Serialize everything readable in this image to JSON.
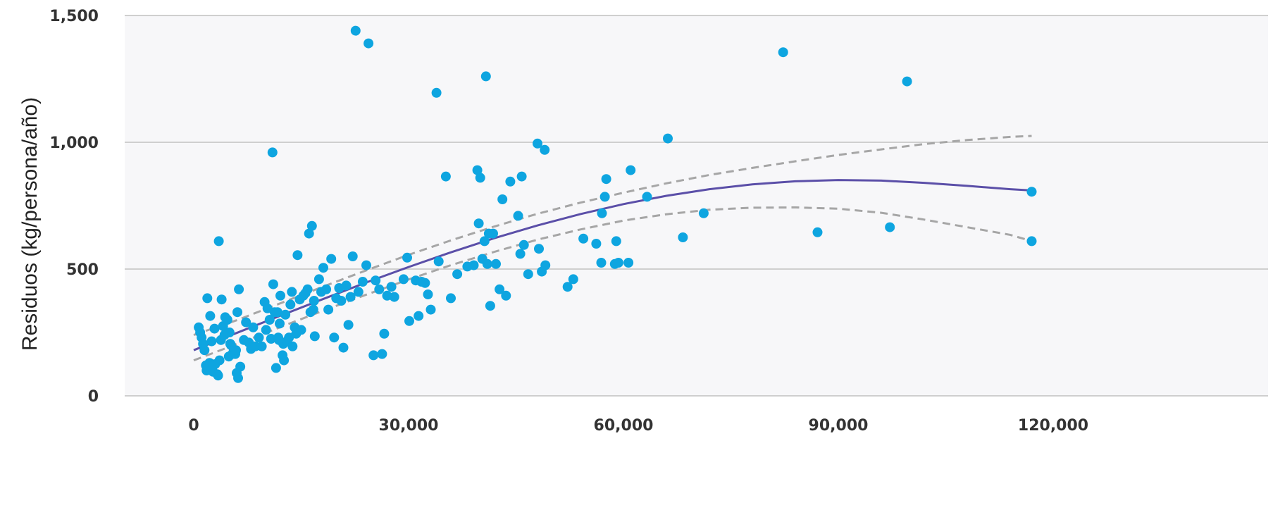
{
  "chart_data": {
    "type": "scatter",
    "title": "",
    "xlabel": "",
    "ylabel": "Residuos (kg/persona/año)",
    "xlim": [
      0,
      120000
    ],
    "ylim": [
      0,
      1500
    ],
    "x_ticks": [
      "0",
      "30,000",
      "60,000",
      "90,000",
      "120,000"
    ],
    "y_ticks": [
      "0",
      "500",
      "1,000",
      "1,500"
    ],
    "grid": "horizontal",
    "legend": "none",
    "colors": {
      "points": "#0ea5e0",
      "fit": "#5b4fa8",
      "ci": "#a6a6a6",
      "plot_background": "#f7f7f9",
      "grid": "#cfcfcf"
    },
    "series": [
      {
        "type": "scatter",
        "points": [
          [
            700,
            270
          ],
          [
            900,
            250
          ],
          [
            1100,
            230
          ],
          [
            1300,
            205
          ],
          [
            1500,
            180
          ],
          [
            1700,
            120
          ],
          [
            1800,
            100
          ],
          [
            1900,
            385
          ],
          [
            2200,
            130
          ],
          [
            2300,
            315
          ],
          [
            2500,
            215
          ],
          [
            2700,
            95
          ],
          [
            2900,
            265
          ],
          [
            3000,
            125
          ],
          [
            3300,
            85
          ],
          [
            3400,
            80
          ],
          [
            3500,
            610
          ],
          [
            3600,
            140
          ],
          [
            3800,
            220
          ],
          [
            3900,
            380
          ],
          [
            4100,
            275
          ],
          [
            4300,
            240
          ],
          [
            4400,
            310
          ],
          [
            4700,
            300
          ],
          [
            4900,
            155
          ],
          [
            5000,
            250
          ],
          [
            5100,
            205
          ],
          [
            5200,
            200
          ],
          [
            5400,
            165
          ],
          [
            5600,
            180
          ],
          [
            5800,
            165
          ],
          [
            5900,
            180
          ],
          [
            6000,
            90
          ],
          [
            6100,
            330
          ],
          [
            6200,
            70
          ],
          [
            6300,
            420
          ],
          [
            6500,
            115
          ],
          [
            7000,
            220
          ],
          [
            7300,
            290
          ],
          [
            7700,
            210
          ],
          [
            8000,
            185
          ],
          [
            8300,
            270
          ],
          [
            8600,
            195
          ],
          [
            9100,
            230
          ],
          [
            9500,
            195
          ],
          [
            9900,
            370
          ],
          [
            10100,
            260
          ],
          [
            10300,
            345
          ],
          [
            10600,
            300
          ],
          [
            10800,
            225
          ],
          [
            11000,
            960
          ],
          [
            11100,
            440
          ],
          [
            11300,
            330
          ],
          [
            11500,
            110
          ],
          [
            11700,
            330
          ],
          [
            11800,
            230
          ],
          [
            11900,
            220
          ],
          [
            12000,
            285
          ],
          [
            12100,
            395
          ],
          [
            12400,
            160
          ],
          [
            12500,
            205
          ],
          [
            12600,
            140
          ],
          [
            12800,
            320
          ],
          [
            13000,
            215
          ],
          [
            13300,
            230
          ],
          [
            13500,
            360
          ],
          [
            13700,
            410
          ],
          [
            13800,
            195
          ],
          [
            14100,
            270
          ],
          [
            14300,
            245
          ],
          [
            14500,
            555
          ],
          [
            14800,
            380
          ],
          [
            15000,
            260
          ],
          [
            15300,
            395
          ],
          [
            15600,
            405
          ],
          [
            15900,
            420
          ],
          [
            16100,
            640
          ],
          [
            16300,
            330
          ],
          [
            16500,
            670
          ],
          [
            16700,
            340
          ],
          [
            16800,
            375
          ],
          [
            16900,
            235
          ],
          [
            17500,
            460
          ],
          [
            17800,
            410
          ],
          [
            18100,
            505
          ],
          [
            18500,
            420
          ],
          [
            18800,
            340
          ],
          [
            19200,
            540
          ],
          [
            19600,
            230
          ],
          [
            19900,
            385
          ],
          [
            20300,
            425
          ],
          [
            20600,
            375
          ],
          [
            20900,
            190
          ],
          [
            21300,
            435
          ],
          [
            21600,
            280
          ],
          [
            21900,
            390
          ],
          [
            22200,
            550
          ],
          [
            22600,
            1440
          ],
          [
            23000,
            410
          ],
          [
            23600,
            450
          ],
          [
            24100,
            515
          ],
          [
            24400,
            1390
          ],
          [
            25100,
            160
          ],
          [
            25400,
            455
          ],
          [
            25900,
            420
          ],
          [
            26300,
            165
          ],
          [
            26600,
            245
          ],
          [
            27000,
            395
          ],
          [
            27600,
            430
          ],
          [
            28000,
            390
          ],
          [
            29300,
            460
          ],
          [
            29800,
            545
          ],
          [
            30100,
            295
          ],
          [
            31000,
            455
          ],
          [
            31400,
            315
          ],
          [
            31800,
            450
          ],
          [
            32300,
            445
          ],
          [
            32700,
            400
          ],
          [
            33100,
            340
          ],
          [
            33900,
            1195
          ],
          [
            34200,
            530
          ],
          [
            35200,
            865
          ],
          [
            35900,
            385
          ],
          [
            36800,
            480
          ],
          [
            38200,
            510
          ],
          [
            39100,
            515
          ],
          [
            39600,
            890
          ],
          [
            39800,
            680
          ],
          [
            40000,
            860
          ],
          [
            40300,
            540
          ],
          [
            40600,
            610
          ],
          [
            40800,
            1260
          ],
          [
            41000,
            520
          ],
          [
            41200,
            640
          ],
          [
            41400,
            355
          ],
          [
            41800,
            640
          ],
          [
            42200,
            520
          ],
          [
            42700,
            420
          ],
          [
            43100,
            775
          ],
          [
            43600,
            395
          ],
          [
            44200,
            845
          ],
          [
            45300,
            710
          ],
          [
            45600,
            560
          ],
          [
            45800,
            865
          ],
          [
            46100,
            595
          ],
          [
            46700,
            480
          ],
          [
            48000,
            995
          ],
          [
            48200,
            580
          ],
          [
            48600,
            490
          ],
          [
            49000,
            970
          ],
          [
            49100,
            515
          ],
          [
            52200,
            430
          ],
          [
            53000,
            460
          ],
          [
            54400,
            620
          ],
          [
            56200,
            600
          ],
          [
            56900,
            525
          ],
          [
            57000,
            720
          ],
          [
            57400,
            785
          ],
          [
            57600,
            855
          ],
          [
            58800,
            520
          ],
          [
            59000,
            610
          ],
          [
            59300,
            525
          ],
          [
            60700,
            525
          ],
          [
            61000,
            890
          ],
          [
            63300,
            785
          ],
          [
            66200,
            1015
          ],
          [
            68300,
            625
          ],
          [
            71200,
            720
          ],
          [
            82300,
            1355
          ],
          [
            87100,
            645
          ],
          [
            97200,
            665
          ],
          [
            99600,
            1240
          ],
          [
            117000,
            805
          ],
          [
            117000,
            610
          ]
        ]
      },
      {
        "type": "line",
        "style": "solid",
        "x": [
          0,
          6000,
          12000,
          18000,
          24000,
          30000,
          36000,
          42000,
          48000,
          54000,
          60000,
          66000,
          72000,
          78000,
          84000,
          90000,
          96000,
          102000,
          108000,
          114000,
          117000
        ],
        "y": [
          180,
          248,
          315,
          381,
          446,
          508,
          567,
          622,
          672,
          717,
          756,
          789,
          815,
          834,
          846,
          851,
          849,
          840,
          828,
          815,
          810
        ]
      },
      {
        "type": "line",
        "style": "dashed",
        "x": [
          0,
          6000,
          12000,
          18000,
          24000,
          30000,
          36000,
          42000,
          48000,
          54000,
          60000,
          66000,
          72000,
          78000,
          84000,
          90000,
          96000,
          102000,
          108000,
          114000,
          117000
        ],
        "y": [
          240,
          298,
          364,
          430,
          494,
          556,
          614,
          668,
          718,
          762,
          801,
          838,
          871,
          899,
          925,
          950,
          972,
          993,
          1009,
          1021,
          1025
        ]
      },
      {
        "type": "line",
        "style": "dashed",
        "x": [
          0,
          6000,
          12000,
          18000,
          24000,
          30000,
          36000,
          42000,
          48000,
          54000,
          60000,
          66000,
          72000,
          78000,
          84000,
          90000,
          96000,
          102000,
          108000,
          114000,
          117000
        ],
        "y": [
          140,
          204,
          270,
          335,
          398,
          459,
          516,
          568,
          616,
          656,
          691,
          716,
          734,
          742,
          743,
          738,
          722,
          695,
          665,
          635,
          610
        ]
      }
    ]
  }
}
